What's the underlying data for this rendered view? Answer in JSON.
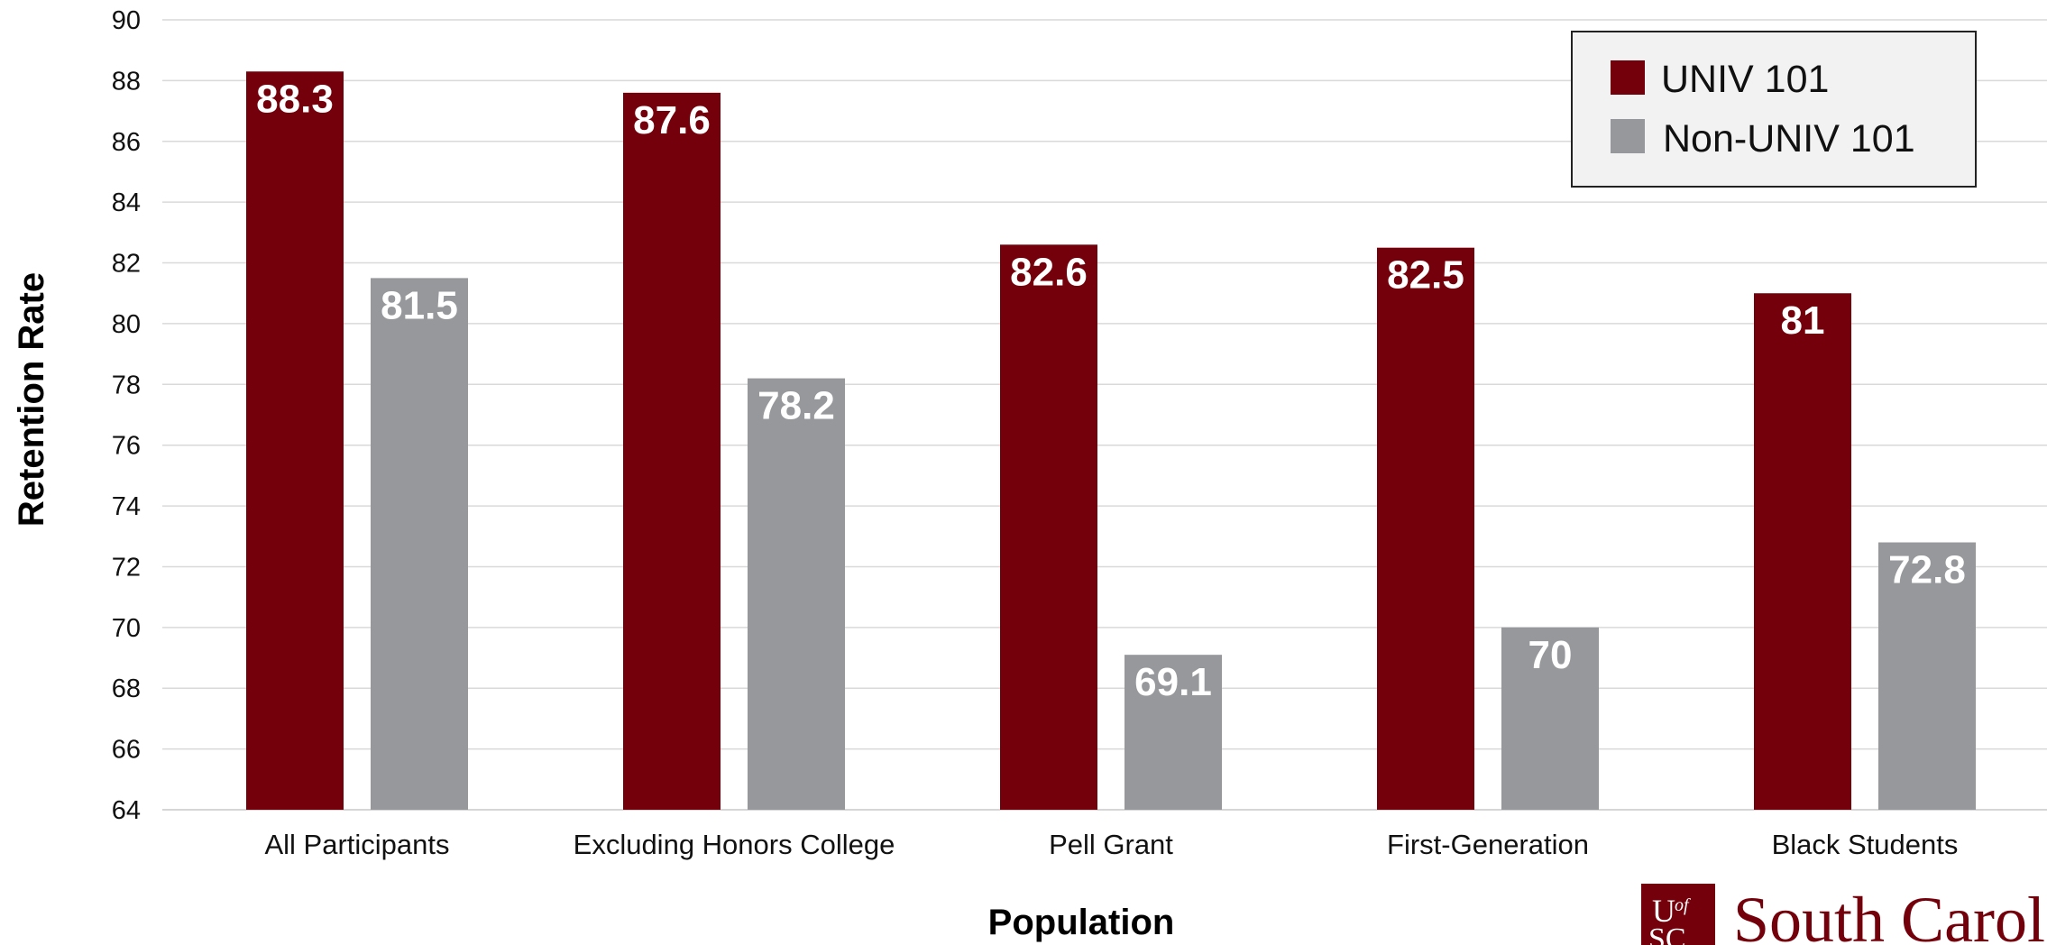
{
  "chart_data": {
    "type": "bar",
    "xlabel": "Population",
    "ylabel": "Retention Rate",
    "ylim": [
      64,
      90
    ],
    "ytick_step": 2,
    "grid": "horizontal",
    "legend_position": "top-right",
    "categories": [
      "All Participants",
      "Excluding Honors College",
      "Pell Grant",
      "First-Generation",
      "Black Students"
    ],
    "series": [
      {
        "name": "UNIV 101",
        "color": "#73000a",
        "values": [
          88.3,
          87.6,
          82.6,
          82.5,
          81
        ]
      },
      {
        "name": "Non-UNIV 101",
        "color": "#97989b",
        "values": [
          81.5,
          78.2,
          69.1,
          70,
          72.8
        ]
      }
    ]
  },
  "logo": {
    "mark_top": "U",
    "mark_superscript": "of",
    "mark_bottom": "SC",
    "wordmark": "South Carol",
    "color": "#73000a"
  }
}
